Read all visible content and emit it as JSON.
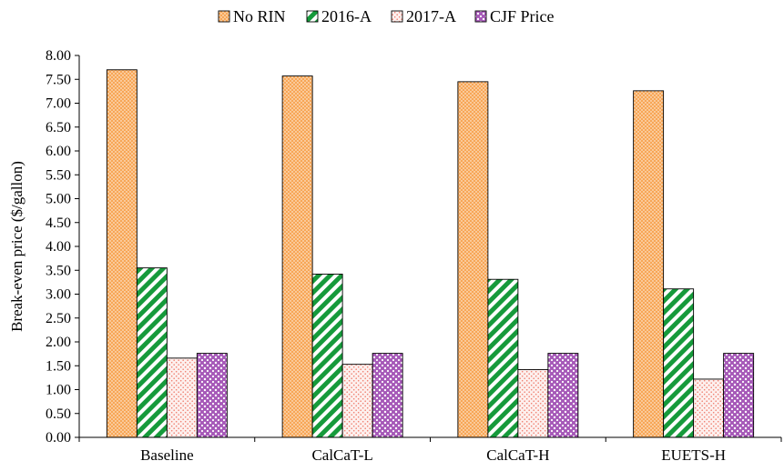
{
  "chart_data": {
    "type": "bar",
    "title": "",
    "xlabel": "",
    "ylabel": "Break-even price ($/gallon)",
    "ylim": [
      0,
      8
    ],
    "ytick_step": 0.5,
    "grid": false,
    "legend_position": "top-center",
    "categories": [
      "Baseline",
      "CalCaT-L",
      "CalCaT-H",
      "EUETS-H"
    ],
    "series": [
      {
        "name": "No RIN",
        "values": [
          7.7,
          7.57,
          7.45,
          7.26
        ],
        "color": "#f5a04b",
        "pattern": "dots-orange"
      },
      {
        "name": "2016-A",
        "values": [
          3.55,
          3.42,
          3.31,
          3.11
        ],
        "color": "#1f9e3e",
        "pattern": "diagonal-stripes-green"
      },
      {
        "name": "2017-A",
        "values": [
          1.66,
          1.53,
          1.42,
          1.22
        ],
        "color": "#f08a7c",
        "pattern": "dots-pink"
      },
      {
        "name": "CJF Price",
        "values": [
          1.76,
          1.76,
          1.76,
          1.76
        ],
        "color": "#a25ab5",
        "pattern": "diamond-purple"
      }
    ]
  }
}
